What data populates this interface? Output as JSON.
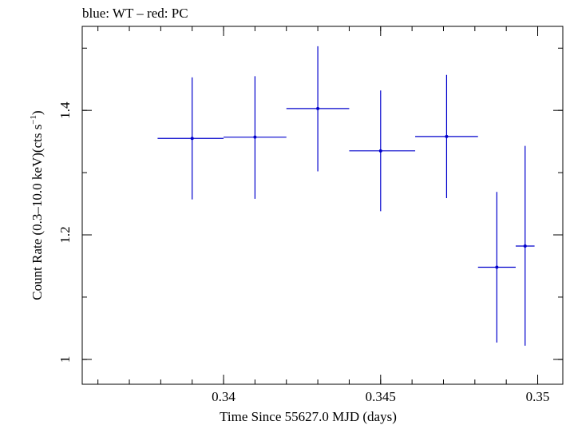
{
  "chart_data": {
    "type": "scatter",
    "title": "blue: WT – red: PC",
    "xlabel": "Time Since 55627.0 MJD (days)",
    "ylabel_main": "Count Rate (0.3–10.0 keV)(cts s",
    "ylabel_sup": "−1",
    "ylabel_close": ")",
    "xlim": [
      0.3355,
      0.3508
    ],
    "ylim": [
      0.96,
      1.535
    ],
    "x_ticks": [
      {
        "value": 0.34,
        "label": "0.34"
      },
      {
        "value": 0.345,
        "label": "0.345"
      },
      {
        "value": 0.35,
        "label": "0.35"
      }
    ],
    "x_minor_step": 0.001,
    "y_ticks": [
      {
        "value": 1.0,
        "label": "1"
      },
      {
        "value": 1.2,
        "label": "1.2"
      },
      {
        "value": 1.4,
        "label": "1.4"
      }
    ],
    "y_minor_step": 0.1,
    "grid": false,
    "series": [
      {
        "color": "#0000cc",
        "points": [
          {
            "x": 0.339,
            "xlo": 0.3379,
            "xhi": 0.34,
            "y": 1.355,
            "ylo": 1.257,
            "yhi": 1.453
          },
          {
            "x": 0.341,
            "xlo": 0.34,
            "xhi": 0.342,
            "y": 1.357,
            "ylo": 1.258,
            "yhi": 1.455
          },
          {
            "x": 0.343,
            "xlo": 0.342,
            "xhi": 0.344,
            "y": 1.403,
            "ylo": 1.302,
            "yhi": 1.503
          },
          {
            "x": 0.345,
            "xlo": 0.344,
            "xhi": 0.3461,
            "y": 1.335,
            "ylo": 1.238,
            "yhi": 1.432
          },
          {
            "x": 0.3471,
            "xlo": 0.3461,
            "xhi": 0.3481,
            "y": 1.358,
            "ylo": 1.259,
            "yhi": 1.457
          },
          {
            "x": 0.3487,
            "xlo": 0.3481,
            "xhi": 0.3493,
            "y": 1.148,
            "ylo": 1.027,
            "yhi": 1.269
          },
          {
            "x": 0.3496,
            "xlo": 0.3493,
            "xhi": 0.3499,
            "y": 1.182,
            "ylo": 1.022,
            "yhi": 1.343
          }
        ]
      }
    ]
  }
}
